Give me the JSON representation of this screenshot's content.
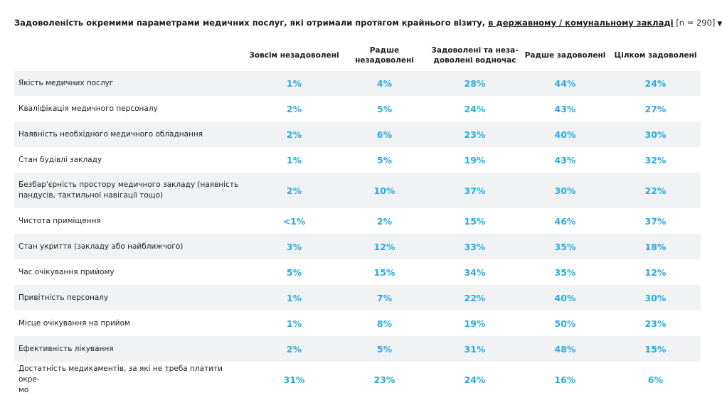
{
  "title": {
    "main": "Задоволеність окремими параметрами медичних послуг, які отримали протягом крайнього візиту, ",
    "link": "в державному / комунальному закладі",
    "n": " [n = 290]",
    "caret": "▼"
  },
  "chart_data": {
    "type": "table",
    "columns": [
      "Зовсім незадоволені",
      "Радше незадоволені",
      "Задоволені та неза-\nдоволені водночас",
      "Радше задоволені",
      "Цілком задоволені"
    ],
    "rows": [
      {
        "label": "Якість медичних послуг",
        "values": [
          "1%",
          "4%",
          "28%",
          "44%",
          "24%"
        ]
      },
      {
        "label": "Кваліфікація медичного персоналу",
        "values": [
          "2%",
          "5%",
          "24%",
          "43%",
          "27%"
        ]
      },
      {
        "label": "Наявність необхідного медичного обладнання",
        "values": [
          "2%",
          "6%",
          "23%",
          "40%",
          "30%"
        ]
      },
      {
        "label": "Стан будівлі закладу",
        "values": [
          "1%",
          "5%",
          "19%",
          "43%",
          "32%"
        ]
      },
      {
        "label": "Безбар'єрність простору медичного закладу (наявність пандусів, тактильної навігації тощо)",
        "values": [
          "2%",
          "10%",
          "37%",
          "30%",
          "22%"
        ]
      },
      {
        "label": "Чистота приміщення",
        "values": [
          "<1%",
          "2%",
          "15%",
          "46%",
          "37%"
        ]
      },
      {
        "label": "Стан укриття (закладу або найближчого)",
        "values": [
          "3%",
          "12%",
          "33%",
          "35%",
          "18%"
        ]
      },
      {
        "label": "Час очікування прийому",
        "values": [
          "5%",
          "15%",
          "34%",
          "35%",
          "12%"
        ]
      },
      {
        "label": "Привітність персоналу",
        "values": [
          "1%",
          "7%",
          "22%",
          "40%",
          "30%"
        ]
      },
      {
        "label": "Місце очікування на прийом",
        "values": [
          "1%",
          "8%",
          "19%",
          "50%",
          "23%"
        ]
      },
      {
        "label": "Ефективність лікування",
        "values": [
          "2%",
          "5%",
          "31%",
          "48%",
          "15%"
        ]
      },
      {
        "label": "Достатність медикаментів, за які не треба платити окре-\nмо",
        "values": [
          "31%",
          "23%",
          "24%",
          "16%",
          "6%"
        ]
      }
    ]
  },
  "colors": {
    "value": "#29abe2",
    "stripe": "#f1f2f4"
  }
}
